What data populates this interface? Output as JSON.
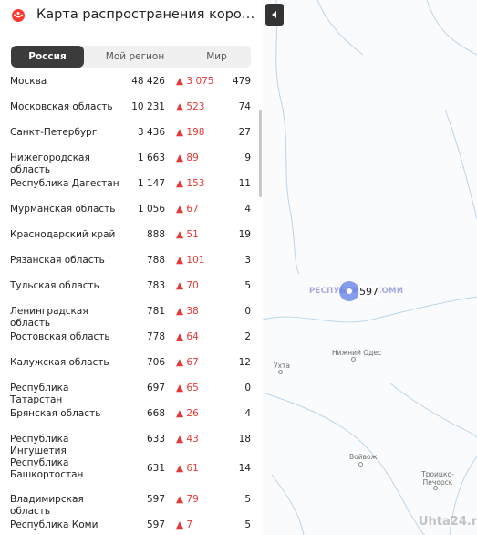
{
  "header": {
    "title": "Карта распространения коронавируса в ..."
  },
  "tabs": [
    {
      "label": "Россия",
      "active": true
    },
    {
      "label": "Мой регион",
      "active": false
    },
    {
      "label": "Мир",
      "active": false
    }
  ],
  "rows": [
    {
      "name": "Москва",
      "total": "48 426",
      "delta": "3 075",
      "deaths": "479"
    },
    {
      "name": "Московская область",
      "total": "10 231",
      "delta": "523",
      "deaths": "74"
    },
    {
      "name": "Санкт-Петербург",
      "total": "3 436",
      "delta": "198",
      "deaths": "27"
    },
    {
      "name": "Нижегородская область",
      "total": "1 663",
      "delta": "89",
      "deaths": "9"
    },
    {
      "name": "Республика Дагестан",
      "total": "1 147",
      "delta": "153",
      "deaths": "11"
    },
    {
      "name": "Мурманская область",
      "total": "1 056",
      "delta": "67",
      "deaths": "4"
    },
    {
      "name": "Краснодарский край",
      "total": "888",
      "delta": "51",
      "deaths": "19"
    },
    {
      "name": "Рязанская область",
      "total": "788",
      "delta": "101",
      "deaths": "3"
    },
    {
      "name": "Тульская область",
      "total": "783",
      "delta": "70",
      "deaths": "5"
    },
    {
      "name": "Ленинградская область",
      "total": "781",
      "delta": "38",
      "deaths": "0"
    },
    {
      "name": "Ростовская область",
      "total": "778",
      "delta": "64",
      "deaths": "2"
    },
    {
      "name": "Калужская область",
      "total": "706",
      "delta": "67",
      "deaths": "12"
    },
    {
      "name": "Республика Татарстан",
      "total": "697",
      "delta": "65",
      "deaths": "0"
    },
    {
      "name": "Брянская область",
      "total": "668",
      "delta": "26",
      "deaths": "4"
    },
    {
      "name": "Республика Ингушетия",
      "total": "633",
      "delta": "43",
      "deaths": "18"
    },
    {
      "name": "Республика Башкортостан",
      "total": "631",
      "delta": "61",
      "deaths": "14"
    },
    {
      "name": "Владимирская область",
      "total": "597",
      "delta": "79",
      "deaths": "5"
    },
    {
      "name": "Республика Коми",
      "total": "597",
      "delta": "7",
      "deaths": "5"
    }
  ],
  "map": {
    "region_label": "РЕСПУБЛИКА КОМИ",
    "bubble_count": "597",
    "towns": [
      "Ухта",
      "Нижний Одес",
      "Войвож",
      "Троицко-Печорск"
    ]
  },
  "watermark": "Uhta24.ru",
  "colors": {
    "accent_red": "#e53935",
    "tab_active": "#3b3b3b",
    "bubble": "#5f7de6"
  },
  "icons": {
    "logo": "coronavirus-logo-icon",
    "collapse": "chevron-left-icon",
    "increase": "triangle-up-icon"
  }
}
